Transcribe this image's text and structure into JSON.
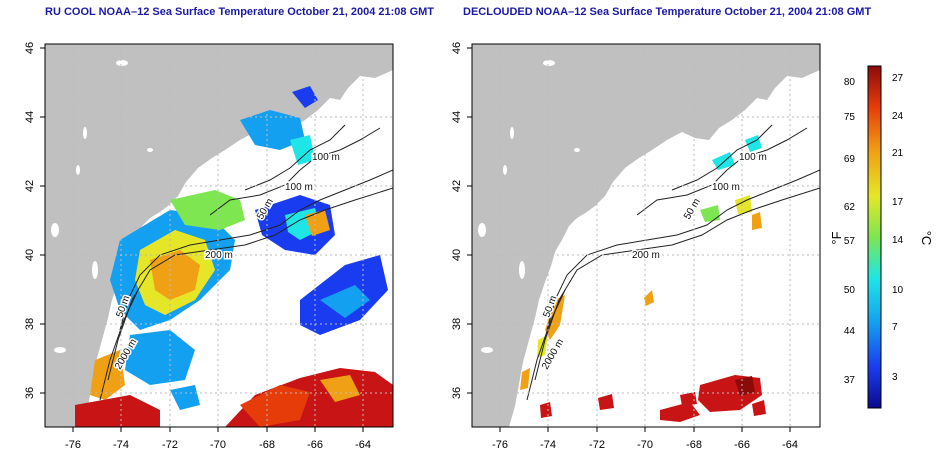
{
  "left_panel": {
    "title": "RU COOL NOAA–12 Sea Surface Temperature October 21, 2004 21:08 GMT",
    "x_ticks": [
      "-76",
      "-74",
      "-72",
      "-70",
      "-68",
      "-66",
      "-64"
    ],
    "y_ticks": [
      "46",
      "44",
      "42",
      "40",
      "38",
      "36"
    ],
    "contour_labels": [
      "100 m",
      "100 m",
      "50 m",
      "200 m",
      "50 m",
      "2000 m"
    ]
  },
  "right_panel": {
    "title": "DECLOUDED NOAA–12 Sea Surface Temperature October 21, 2004 21:08 GMT",
    "x_ticks": [
      "-76",
      "-74",
      "-72",
      "-70",
      "-68",
      "-66",
      "-64"
    ],
    "y_ticks": [
      "46",
      "44",
      "42",
      "40",
      "38",
      "36"
    ],
    "contour_labels": [
      "100 m",
      "100 m",
      "50 m",
      "200 m",
      "50 m",
      "2000 m"
    ]
  },
  "color_scale": {
    "fahrenheit_unit": "°F",
    "celsius_unit": "°C",
    "fahrenheit_ticks": [
      "80",
      "75",
      "69",
      "62",
      "57",
      "50",
      "44",
      "37"
    ],
    "celsius_ticks": [
      "27",
      "24",
      "21",
      "17",
      "14",
      "10",
      "7",
      "3"
    ]
  },
  "colors": {
    "land": "#c0c0c0",
    "ocean": "#ffffff",
    "title": "#1a1aa6",
    "warm": "#c81414",
    "cold": "#14148c"
  }
}
